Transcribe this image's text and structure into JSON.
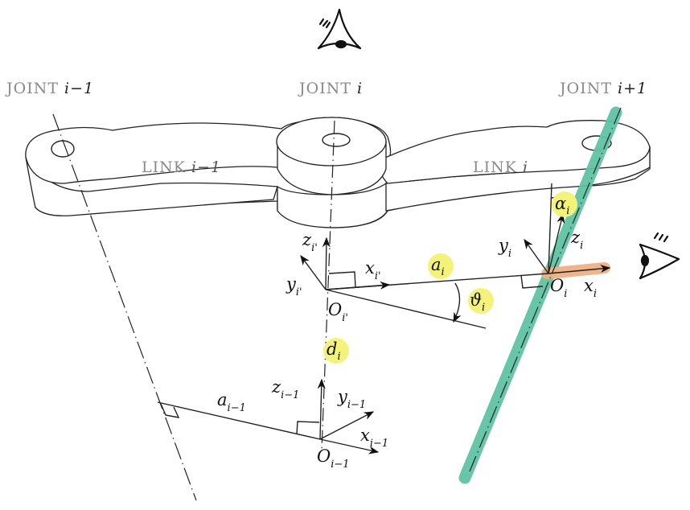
{
  "joints": {
    "prev": {
      "name": "JOINT",
      "index": "i−1"
    },
    "current": {
      "name": "JOINT",
      "index": "i"
    },
    "next": {
      "name": "JOINT",
      "index": "i+1"
    }
  },
  "links": {
    "prev": {
      "name": "LINK",
      "index": "i−1"
    },
    "current": {
      "name": "LINK",
      "index": "i"
    }
  },
  "frame_i_prime": {
    "z": {
      "sym": "z",
      "sub": "i'"
    },
    "x": {
      "sym": "x",
      "sub": "i'"
    },
    "y": {
      "sym": "y",
      "sub": "i'"
    },
    "origin": {
      "sym": "O",
      "sub": "i'"
    }
  },
  "frame_i": {
    "z": {
      "sym": "z",
      "sub": "i"
    },
    "x": {
      "sym": "x",
      "sub": "i"
    },
    "y": {
      "sym": "y",
      "sub": "i"
    },
    "origin": {
      "sym": "O",
      "sub": "i"
    }
  },
  "frame_i_minus_1": {
    "z": {
      "sym": "z",
      "sub": "i−1"
    },
    "x": {
      "sym": "x",
      "sub": "i−1"
    },
    "y": {
      "sym": "y",
      "sub": "i−1"
    },
    "origin": {
      "sym": "O",
      "sub": "i−1"
    }
  },
  "parameters": {
    "a_i": {
      "sym": "a",
      "sub": "i"
    },
    "theta_i": {
      "sym": "ϑ",
      "sub": "i"
    },
    "d_i": {
      "sym": "d",
      "sub": "i"
    },
    "alpha_i": {
      "sym": "α",
      "sub": "i"
    },
    "a_i_minus_1": {
      "sym": "a",
      "sub": "i−1"
    }
  },
  "colors": {
    "highlight_yellow": "#f3f37a",
    "axis_teal": "#5fc3a4",
    "axis_orange": "#f0b183"
  },
  "icons": [
    "eye-top-icon",
    "eye-side-icon"
  ]
}
